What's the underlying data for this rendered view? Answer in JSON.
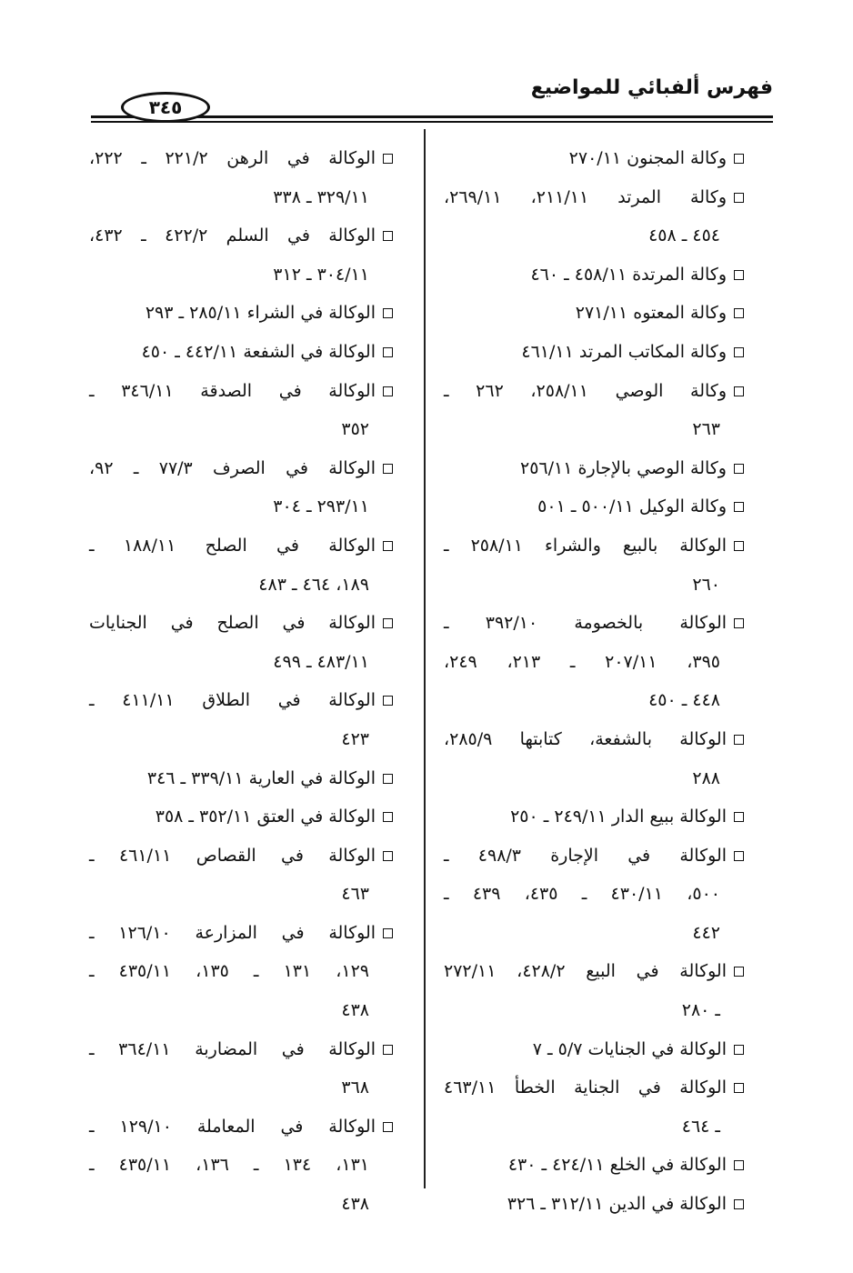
{
  "header": {
    "title": "فهرس ألفبائي للمواضيع",
    "page_number": "٣٤٥"
  },
  "right_column": [
    {
      "lines": [
        "وكالة المجنون ٢٧٠/١١"
      ]
    },
    {
      "lines": [
        "وكالة المرتد ٢١١/١١، ٢٦٩/١١،",
        "٤٥٤ ـ ٤٥٨"
      ]
    },
    {
      "lines": [
        "وكالة المرتدة ٤٥٨/١١ ـ ٤٦٠"
      ]
    },
    {
      "lines": [
        "وكالة المعتوه ٢٧١/١١"
      ]
    },
    {
      "lines": [
        "وكالة المكاتب المرتد ٤٦١/١١"
      ]
    },
    {
      "lines": [
        "وكالة الوصي ٢٥٨/١١، ٢٦٢ ـ",
        "٢٦٣"
      ]
    },
    {
      "lines": [
        "وكالة الوصي بالإجارة ٢٥٦/١١"
      ]
    },
    {
      "lines": [
        "وكالة الوكيل ٥٠٠/١١ ـ ٥٠١"
      ]
    },
    {
      "lines": [
        "الوكالة بالبيع والشراء ٢٥٨/١١ ـ",
        "٢٦٠"
      ]
    },
    {
      "lines": [
        "الوكالة بالخصومة ٣٩٢/١٠ ـ",
        "٣٩٥، ٢٠٧/١١ ـ ٢١٣، ٢٤٩،",
        "٤٤٨ ـ ٤٥٠"
      ]
    },
    {
      "lines": [
        "الوكالة بالشفعة، كتابتها ٢٨٥/٩،",
        "٢٨٨"
      ]
    },
    {
      "lines": [
        "الوكالة ببيع الدار ٢٤٩/١١ ـ ٢٥٠"
      ]
    },
    {
      "lines": [
        "الوكالة في الإجارة ٤٩٨/٣ ـ",
        "٥٠٠، ٤٣٠/١١ ـ ٤٣٥، ٤٣٩ ـ",
        "٤٤٢"
      ]
    },
    {
      "lines": [
        "الوكالة في البيع ٤٢٨/٢، ٢٧٢/١١",
        "ـ ٢٨٠"
      ]
    },
    {
      "lines": [
        "الوكالة في الجنايات ٥/٧ ـ ٧"
      ]
    },
    {
      "lines": [
        "الوكالة في الجناية الخطأ ٤٦٣/١١",
        "ـ ٤٦٤"
      ]
    },
    {
      "lines": [
        "الوكالة في الخلع ٤٢٤/١١ ـ ٤٣٠"
      ]
    },
    {
      "lines": [
        "الوكالة في الدين ٣١٢/١١ ـ ٣٢٦"
      ]
    }
  ],
  "left_column": [
    {
      "lines": [
        "الوكالة في الرهن ٢٢١/٢ ـ ٢٢٢،",
        "٣٢٩/١١ ـ ٣٣٨"
      ]
    },
    {
      "lines": [
        "الوكالة في السلم ٤٢٢/٢ ـ ٤٣٢،",
        "٣٠٤/١١ ـ ٣١٢"
      ]
    },
    {
      "lines": [
        "الوكالة في الشراء ٢٨٥/١١ ـ ٢٩٣"
      ]
    },
    {
      "lines": [
        "الوكالة في الشفعة ٤٤٢/١١ ـ ٤٥٠"
      ]
    },
    {
      "lines": [
        "الوكالة في الصدقة ٣٤٦/١١ ـ",
        "٣٥٢"
      ]
    },
    {
      "lines": [
        "الوكالة في الصرف ٧٧/٣ ـ ٩٢،",
        "٢٩٣/١١ ـ ٣٠٤"
      ]
    },
    {
      "lines": [
        "الوكالة في الصلح ١٨٨/١١ ـ",
        "١٨٩، ٤٦٤ ـ ٤٨٣"
      ]
    },
    {
      "lines": [
        "الوكالة في الصلح في الجنايات",
        "٤٨٣/١١ ـ ٤٩٩"
      ]
    },
    {
      "lines": [
        "الوكالة في الطلاق ٤١١/١١ ـ",
        "٤٢٣"
      ]
    },
    {
      "lines": [
        "الوكالة في العارية ٣٣٩/١١ ـ ٣٤٦"
      ]
    },
    {
      "lines": [
        "الوكالة في العتق ٣٥٢/١١ ـ ٣٥٨"
      ]
    },
    {
      "lines": [
        "الوكالة في القصاص ٤٦١/١١ ـ",
        "٤٦٣"
      ]
    },
    {
      "lines": [
        "الوكالة في المزارعة ١٢٦/١٠ ـ",
        "١٢٩، ١٣١ ـ ١٣٥، ٤٣٥/١١ ـ",
        "٤٣٨"
      ]
    },
    {
      "lines": [
        "الوكالة في المضاربة ٣٦٤/١١ ـ",
        "٣٦٨"
      ]
    },
    {
      "lines": [
        "الوكالة في المعاملة ١٢٩/١٠ ـ",
        "١٣١، ١٣٤ ـ ١٣٦، ٤٣٥/١١ ـ",
        "٤٣٨"
      ]
    }
  ]
}
